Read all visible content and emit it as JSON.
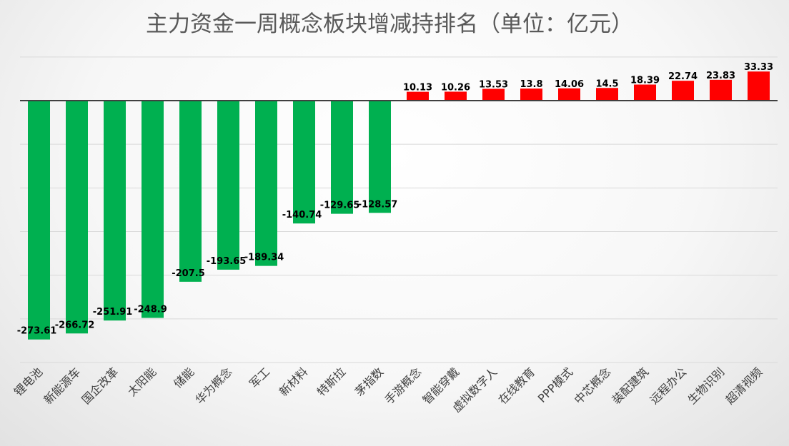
{
  "chart_data": {
    "type": "bar",
    "title": "主力资金一周概念板块增减持排名（单位：亿元）",
    "xlabel": "",
    "ylabel": "",
    "categories": [
      "锂电池",
      "新能源车",
      "国企改革",
      "太阳能",
      "储能",
      "华为概念",
      "军工",
      "新材料",
      "特斯拉",
      "茅指数",
      "手游概念",
      "智能穿戴",
      "虚拟数字人",
      "在线教育",
      "PPP模式",
      "中芯概念",
      "装配建筑",
      "远程办公",
      "生物识别",
      "超清视频"
    ],
    "values": [
      -273.61,
      -266.72,
      -251.91,
      -248.9,
      -207.5,
      -193.65,
      -189.34,
      -140.74,
      -129.65,
      -128.57,
      10.13,
      10.26,
      13.53,
      13.8,
      14.06,
      14.5,
      18.39,
      22.74,
      23.83,
      33.33
    ],
    "value_labels": [
      "-273.61",
      "-266.72",
      "-251.91",
      "-248.9",
      "-207.5",
      "-193.65",
      "-189.34",
      "-140.74",
      "-129.65",
      "-128.57",
      "10.13",
      "10.26",
      "13.53",
      "13.8",
      "14.06",
      "14.5",
      "18.39",
      "22.74",
      "23.83",
      "33.33"
    ],
    "ylim": [
      -300,
      50
    ],
    "grid": true,
    "legend": "none",
    "colors": {
      "positive": "#ff0000",
      "negative": "#00b050",
      "grid": "#d9d9d9",
      "axis": "#404040"
    }
  }
}
